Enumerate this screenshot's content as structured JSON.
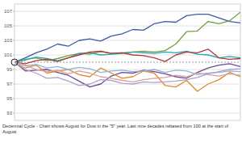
{
  "chart_data": {
    "type": "line",
    "title": "Decennial Cycle - Chart shows August for Dow in the \"5\" year.  Last nine decades rebased from 100 at the start of August",
    "x": [
      1,
      2,
      3,
      4,
      5,
      6,
      7,
      8,
      9,
      10,
      11,
      12,
      13,
      14,
      15,
      16,
      17,
      18,
      19,
      20,
      21,
      22
    ],
    "xlim": [
      1,
      22
    ],
    "ylim": [
      92,
      108
    ],
    "yticks": [
      93,
      95,
      97,
      99,
      101,
      103,
      105,
      107
    ],
    "baseline": 100,
    "grid": true,
    "tick_labels": "y",
    "series": [
      {
        "color": "#3b5ba5",
        "values": [
          100,
          100.6,
          101.3,
          101.8,
          102.5,
          102.2,
          103.0,
          103.2,
          102.9,
          103.6,
          103.9,
          104.5,
          104.4,
          105.3,
          105.6,
          105.5,
          106.4,
          106.6,
          106.6,
          106.1,
          105.6,
          105.4
        ]
      },
      {
        "color": "#76a03d",
        "values": [
          100,
          100.4,
          100.6,
          100.2,
          100.5,
          100.9,
          101.2,
          101.1,
          101.5,
          101.2,
          101.3,
          101.4,
          101.5,
          101.4,
          101.6,
          102.5,
          104.2,
          104.3,
          105.6,
          105.3,
          105.7,
          106.9
        ]
      },
      {
        "color": "#2aa3b5",
        "values": [
          100,
          100.3,
          100.7,
          100.5,
          100.2,
          100.6,
          101.2,
          101.3,
          101.0,
          101.1,
          101.2,
          101.4,
          101.3,
          101.2,
          101.4,
          101.3,
          101.5,
          101.1,
          101.0,
          100.6,
          100.8,
          100.6
        ]
      },
      {
        "color": "#b03a3a",
        "values": [
          100,
          99.8,
          100.2,
          100.4,
          100.1,
          100.6,
          101.0,
          101.4,
          101.5,
          101.2,
          101.3,
          101.0,
          100.9,
          100.6,
          100.1,
          101.0,
          101.4,
          101.3,
          101.8,
          100.6,
          100.4,
          100.5
        ]
      },
      {
        "color": "#6a4a9a",
        "values": [
          100,
          98.8,
          98.9,
          99.0,
          98.6,
          98.2,
          97.4,
          96.6,
          97.0,
          98.1,
          98.6,
          98.5,
          98.9,
          98.7,
          98.4,
          98.0,
          97.8,
          98.6,
          99.2,
          99.6,
          99.8,
          99.4
        ]
      },
      {
        "color": "#e08a2e",
        "values": [
          100,
          99.2,
          99.6,
          98.5,
          98.8,
          99.0,
          98.3,
          98.0,
          99.2,
          98.5,
          97.8,
          98.0,
          98.8,
          98.5,
          96.8,
          96.6,
          97.5,
          96.0,
          97.0,
          97.6,
          98.6,
          98.0
        ]
      },
      {
        "color": "#8fb4dc",
        "values": [
          100,
          99.5,
          99.7,
          99.2,
          99.4,
          99.0,
          99.3,
          99.1,
          98.6,
          98.8,
          98.9,
          98.7,
          98.8,
          99.0,
          98.6,
          98.9,
          98.8,
          98.3,
          98.5,
          98.6,
          98.8,
          98.7
        ]
      },
      {
        "color": "#d9a0a0",
        "values": [
          100,
          99.6,
          99.0,
          98.7,
          98.9,
          98.4,
          98.8,
          98.5,
          98.0,
          97.8,
          97.5,
          97.3,
          97.6,
          97.8,
          97.9,
          98.2,
          98.0,
          98.5,
          98.3,
          98.1,
          98.4,
          98.2
        ]
      },
      {
        "color": "#b0a0cc",
        "values": [
          100,
          99.0,
          98.5,
          97.8,
          97.9,
          97.4,
          96.8,
          97.0,
          97.6,
          97.5,
          97.1,
          97.0,
          97.3,
          97.2,
          97.3,
          97.4,
          97.6,
          97.9,
          98.4,
          98.7,
          99.0,
          99.1
        ]
      }
    ]
  }
}
